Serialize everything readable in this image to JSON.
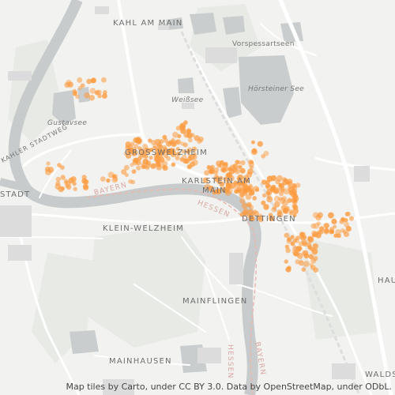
{
  "map": {
    "place_labels": {
      "kahl_am_main": "KAHL AM MAIN",
      "grosswelzheim": "GROSSWELZHEIM",
      "karlstein_line1": "KARLSTEIN AM",
      "karlstein_line2": "MAIN",
      "dettingen": "DETTINGEN",
      "klein_welzheim": "KLEIN-WELZHEIM",
      "mainflingen": "MAINFLINGEN",
      "mainhausen": "MAINHAUSEN",
      "stadt_partial": "STADT",
      "hau_partial": "HAU",
      "wald_partial": "WALDS",
      "vorspessartseen": "Vorspessartseen",
      "kahler_stadtweg": "KAHLER STADTWEG"
    },
    "lake_labels": {
      "weissee": "Weißsee",
      "gustavsee": "Gustavsee",
      "horsteiner_see": "Hörsteiner See"
    },
    "state_labels": {
      "bayern_left": "BAYERN",
      "hessen_mid": "HESSEN",
      "hessen_bottom": "HESSEN",
      "bayern_bottom": "BAYERN"
    },
    "colors": {
      "land": "#f2f2f0",
      "water": "#c7cbcc",
      "green": "#e6e9e4",
      "building": "#dcdcdc",
      "road": "#ffffff",
      "border": "#e9b8b0",
      "dot": "#fc9b3f"
    },
    "attribution": "Map tiles by Carto, under CC BY 3.0. Data by OpenStreetMap, under ODbL."
  }
}
